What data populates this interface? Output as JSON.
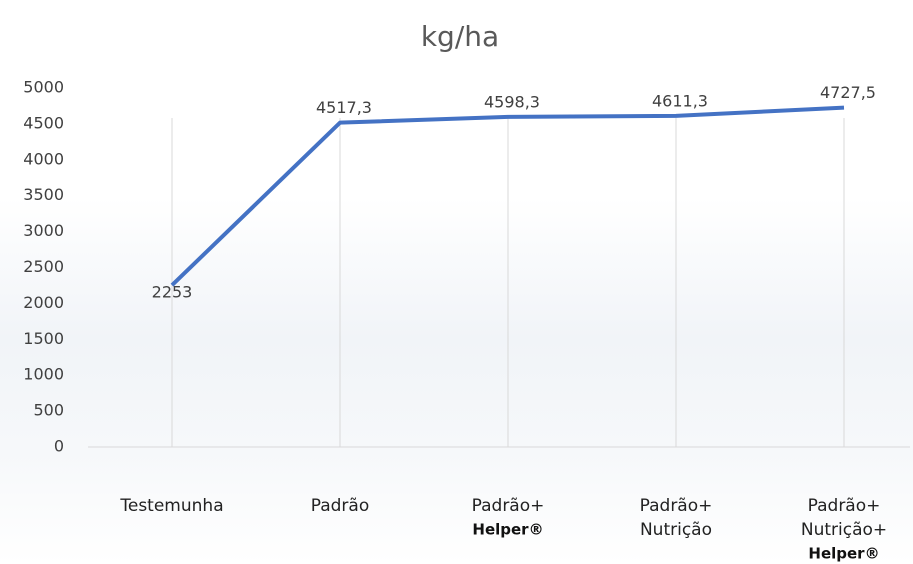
{
  "chart_data": {
    "type": "line",
    "title": "kg/ha",
    "categories": [
      [
        "Testemunha"
      ],
      [
        "Padrão"
      ],
      [
        "Padrão+",
        "Helper®"
      ],
      [
        "Padrão+",
        "Nutrição"
      ],
      [
        "Padrão+",
        "Nutrição+",
        "Helper®"
      ]
    ],
    "series": [
      {
        "name": null,
        "color": "#4472c4",
        "values": [
          2253,
          4517.3,
          4598.3,
          4611.3,
          4727.5
        ],
        "value_labels": [
          "2253",
          "4517,3",
          "4598,3",
          "4611,3",
          "4727,5"
        ]
      }
    ],
    "ylim": [
      0,
      5000
    ],
    "yticks": [
      0,
      500,
      1000,
      1500,
      2000,
      2500,
      3000,
      3500,
      4000,
      4500,
      5000
    ],
    "grid": true
  }
}
